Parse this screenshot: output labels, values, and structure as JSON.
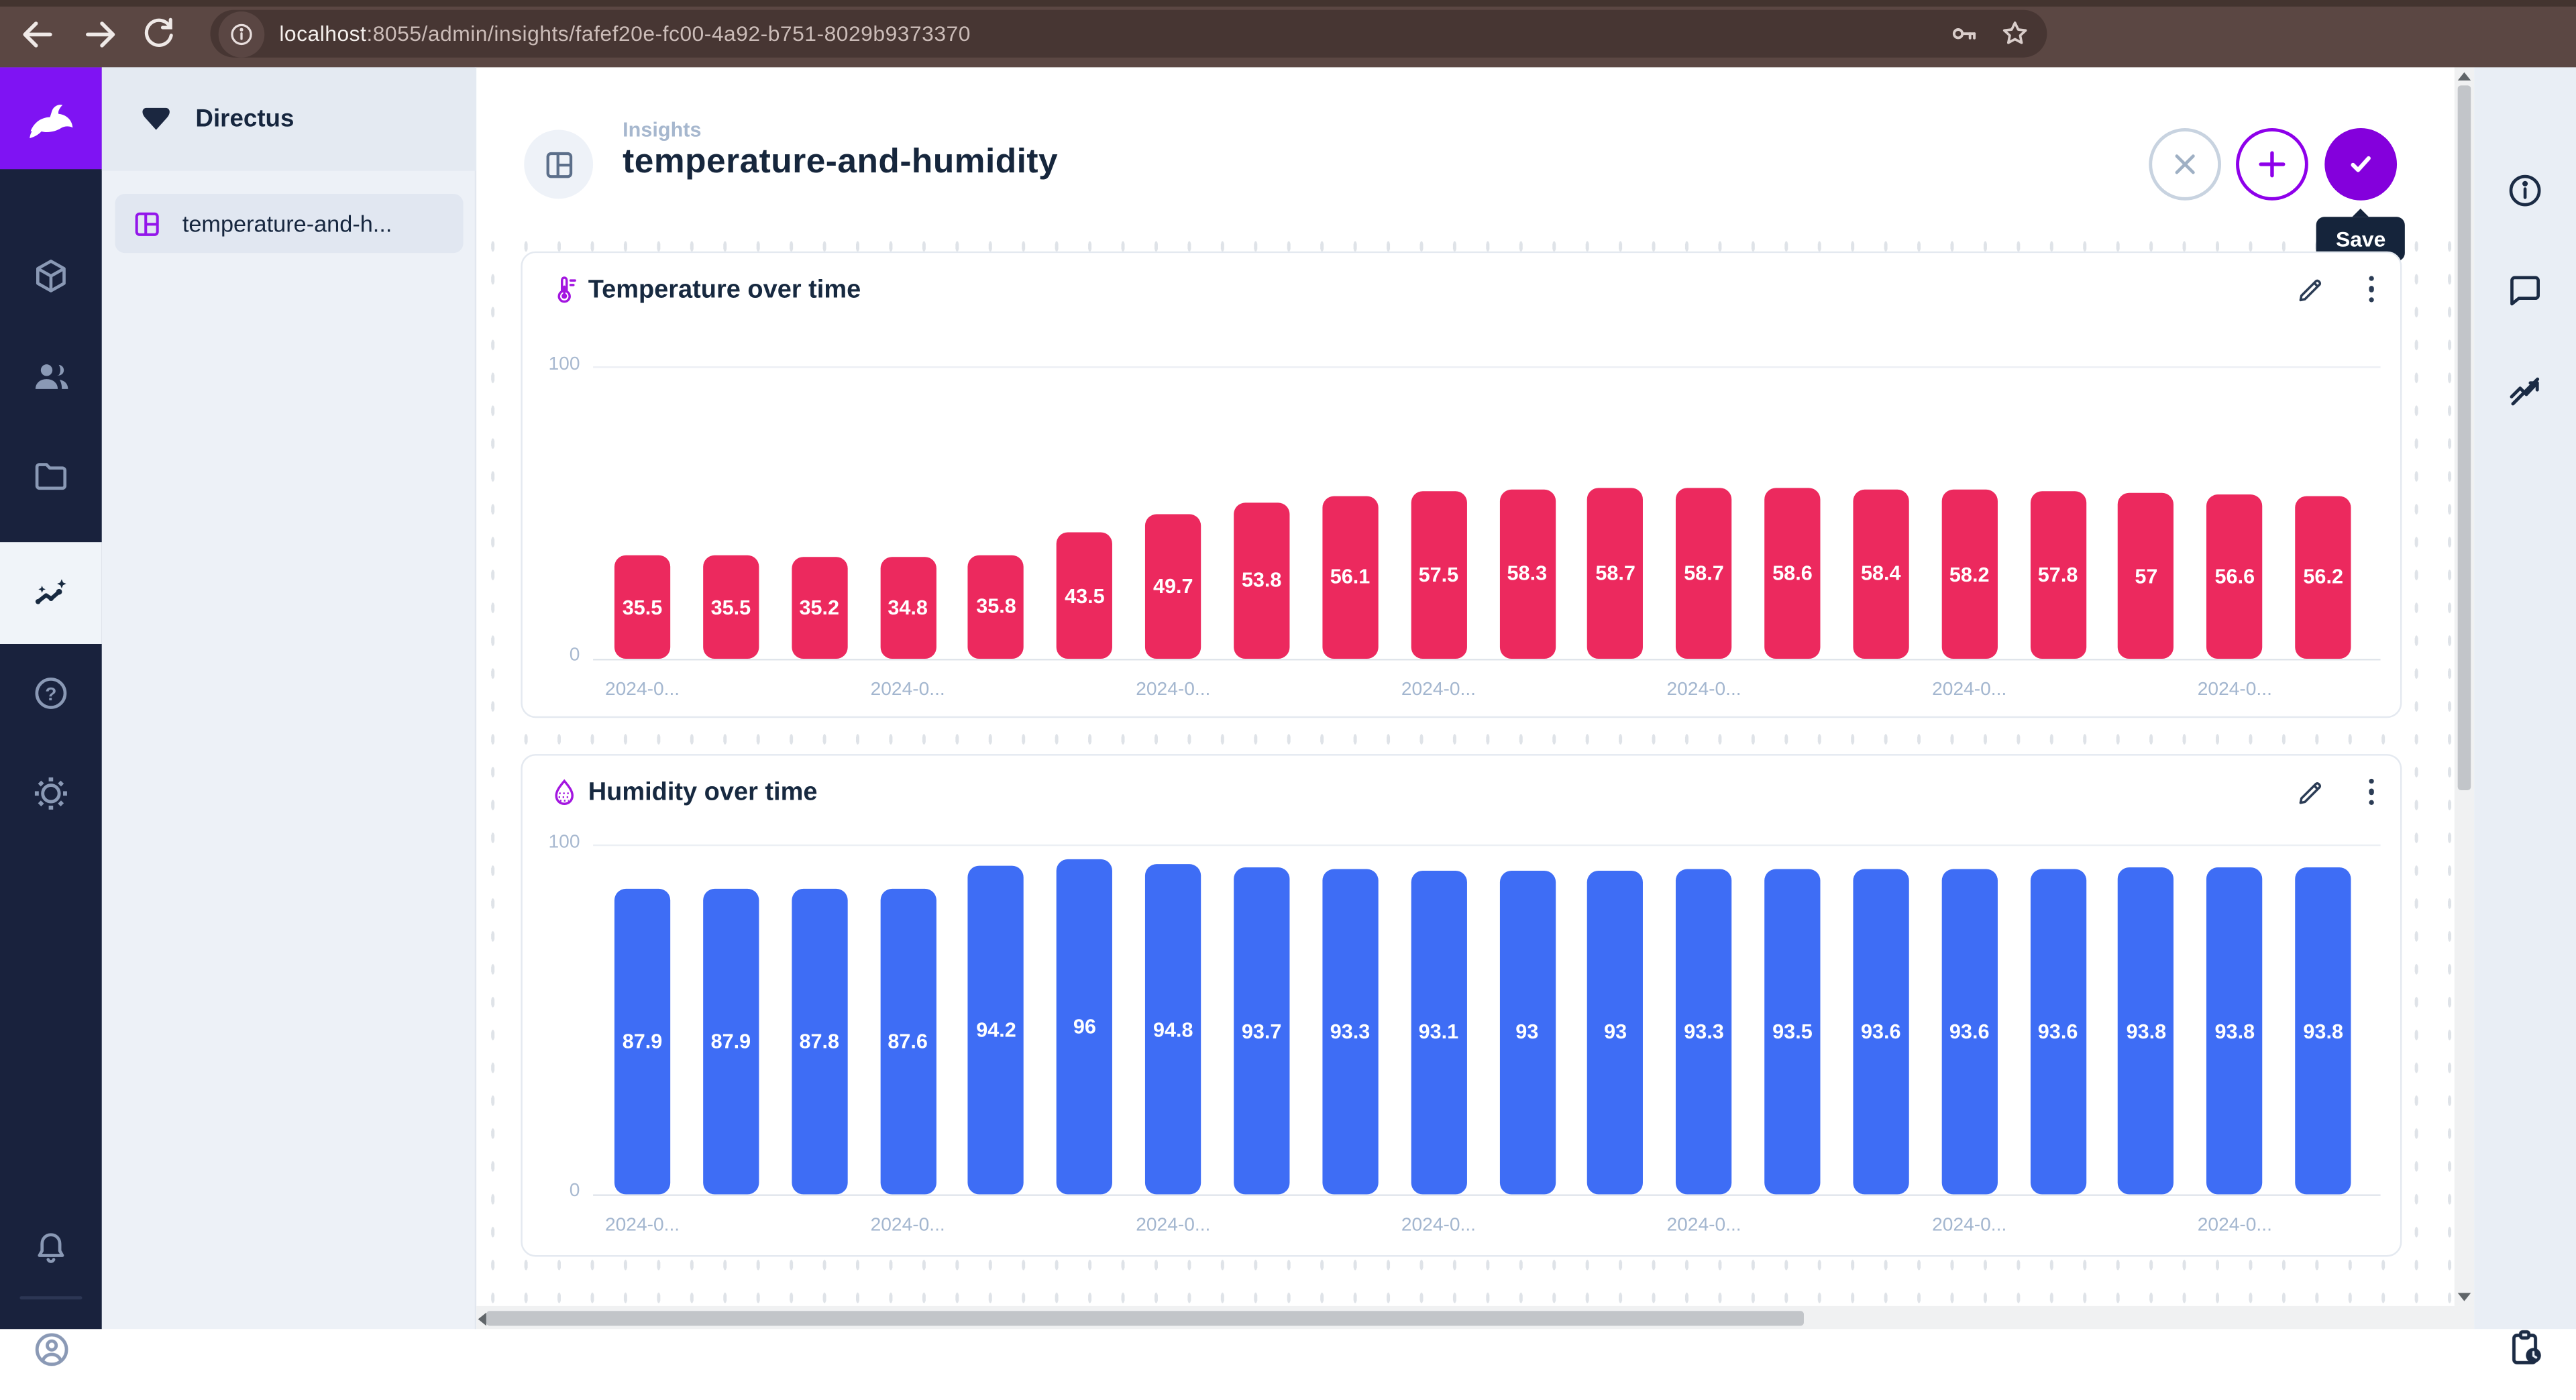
{
  "browser": {
    "url": {
      "host": "localhost",
      "rest": ":8055/admin/insights/fafef20e-fc00-4a92-b751-8029b9373370"
    }
  },
  "module_bar": {
    "items": [
      "content",
      "user-directory",
      "file-library",
      "insights",
      "documentation",
      "settings"
    ],
    "active": "insights",
    "bottom_items": [
      "notifications",
      "account"
    ]
  },
  "nav": {
    "project_name": "Directus",
    "items": [
      {
        "label": "temperature-and-h...",
        "icon": "dashboard"
      }
    ]
  },
  "header": {
    "breadcrumb": "Insights",
    "title": "temperature-and-humidity",
    "save_tooltip": "Save"
  },
  "panels": [
    {
      "title": "Temperature over time",
      "icon": "thermometer"
    },
    {
      "title": "Humidity over time",
      "icon": "humidity-drop"
    }
  ],
  "colors": {
    "accent_purple": "#8e00ea",
    "logo_purple": "#7f13f3",
    "temperature_bar": "#ec295e",
    "humidity_bar": "#3e6df5",
    "dark_navy": "#172940"
  },
  "chart_data": [
    {
      "type": "bar",
      "title": "Temperature over time",
      "values": [
        35.5,
        35.5,
        35.2,
        34.8,
        35.8,
        43.5,
        49.7,
        53.8,
        56.1,
        57.5,
        58.3,
        58.7,
        58.7,
        58.6,
        58.4,
        58.2,
        57.8,
        57,
        56.6,
        56.2
      ],
      "ylim": [
        0,
        100
      ],
      "y_axis_labels": {
        "top": "100",
        "bottom": "0"
      },
      "x_tick_label": "2024-0...",
      "x_tick_indices": [
        0,
        3,
        6,
        9,
        12,
        15,
        18
      ],
      "bar_color": "#ec295e",
      "value_labels": true,
      "grid": "top gridline only",
      "legend": "none"
    },
    {
      "type": "bar",
      "title": "Humidity over time",
      "values": [
        87.9,
        87.9,
        87.8,
        87.6,
        94.2,
        96,
        94.8,
        93.7,
        93.3,
        93.1,
        93,
        93,
        93.3,
        93.5,
        93.6,
        93.6,
        93.6,
        93.8,
        93.8,
        93.8
      ],
      "ylim": [
        0,
        100
      ],
      "y_axis_labels": {
        "top": "100",
        "bottom": "0"
      },
      "x_tick_label": "2024-0...",
      "x_tick_indices": [
        0,
        3,
        6,
        9,
        12,
        15,
        18
      ],
      "bar_color": "#3e6df5",
      "value_labels": true,
      "grid": "top gridline only",
      "legend": "none"
    }
  ]
}
